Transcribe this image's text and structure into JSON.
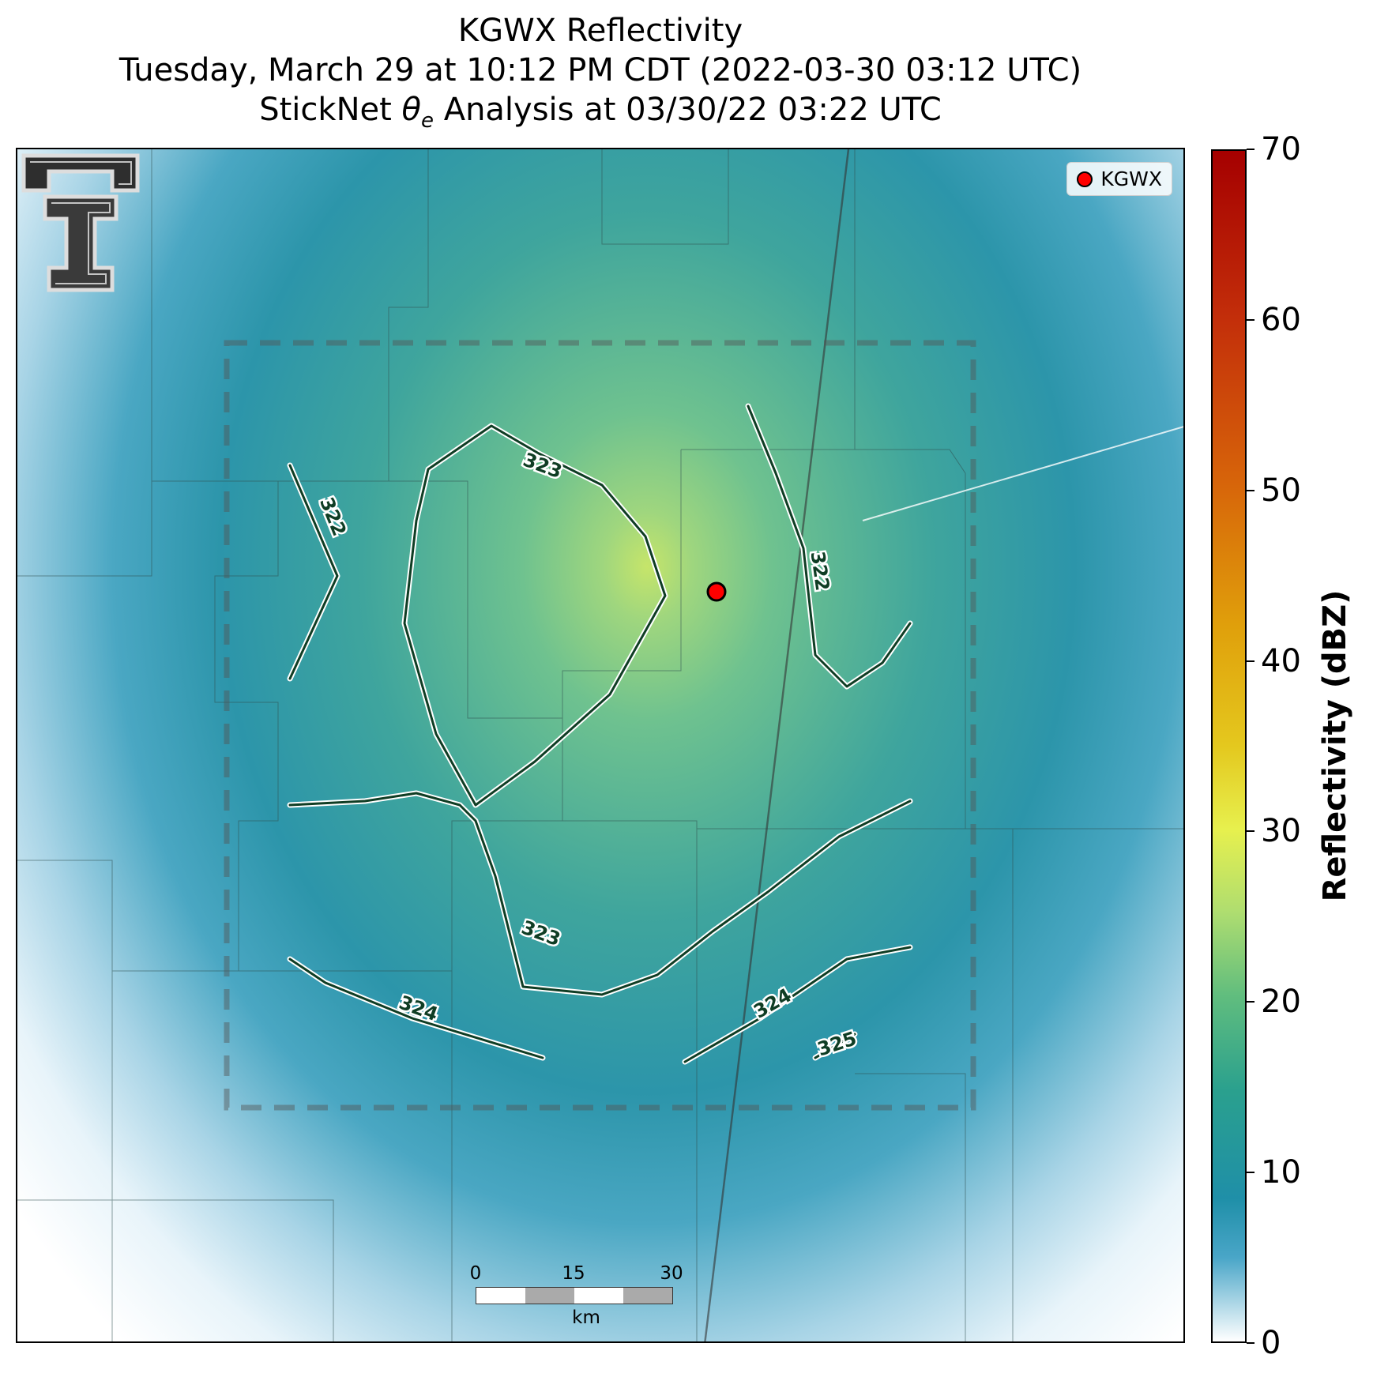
{
  "title": {
    "line1": "KGWX Reflectivity",
    "line2": "Tuesday, March 29 at 10:12 PM CDT (2022-03-30 03:12 UTC)",
    "line3_prefix": "StickNet ",
    "line3_symbol": "θ",
    "line3_subscript": "e",
    "line3_suffix": " Analysis at 03/30/22 03:22 UTC"
  },
  "legend": {
    "label": "KGWX",
    "marker_color": "#ff0000"
  },
  "radar_site": {
    "name": "KGWX",
    "marker_color": "#ff0000"
  },
  "contours": {
    "color": "#0f3d24",
    "labels": [
      "322",
      "322",
      "323",
      "323",
      "324",
      "324",
      "325"
    ]
  },
  "scalebar": {
    "ticks": [
      "0",
      "15",
      "30"
    ],
    "unit": "km"
  },
  "colorbar": {
    "label": "Reflectivity (dBZ)",
    "ticks": [
      "0",
      "10",
      "20",
      "30",
      "40",
      "50",
      "60",
      "70"
    ],
    "min": 0,
    "max": 70,
    "colors": [
      "#ffffff",
      "#1f8fa8",
      "#60bd7e",
      "#e7f04e",
      "#e0a00b",
      "#c32e0a",
      "#a50000"
    ]
  },
  "logo": {
    "name": "Texas Tech double-T logo"
  }
}
